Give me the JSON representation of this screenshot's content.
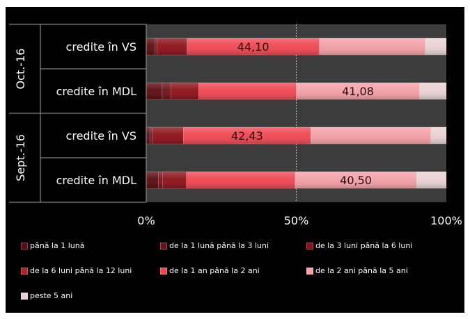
{
  "chart_data": {
    "type": "bar",
    "orientation": "horizontal",
    "stacked": true,
    "percent": true,
    "groups": [
      {
        "label": "Oct.-16",
        "rows": [
          0,
          1
        ]
      },
      {
        "label": "Sept.-16",
        "rows": [
          2,
          3
        ]
      }
    ],
    "categories": [
      "credite în VS",
      "credite în MDL",
      "credite în VS",
      "credite în MDL"
    ],
    "series": [
      {
        "name": "până la 1 lună",
        "color": "#5a0a10",
        "values": [
          2.9,
          5.3,
          1.2,
          4.1
        ]
      },
      {
        "name": "de la 1 lună până la 3 luni",
        "color": "#6e1018",
        "values": [
          0.7,
          3.0,
          0.8,
          1.3
        ]
      },
      {
        "name": "de la 3 luni până la 6 luni",
        "color": "#8c1018",
        "values": [
          10.0,
          9.2,
          10.4,
          8.0
        ]
      },
      {
        "name": "de la 6 luni până la 12 luni",
        "color": "#b02028",
        "values": [
          0,
          0,
          0,
          0
        ]
      },
      {
        "name": "de la 1 an până la 2 ani",
        "color": "#f04650",
        "values": [
          44.1,
          32.5,
          42.43,
          36.2
        ]
      },
      {
        "name": "de la 2 ani până la 5 ani",
        "color": "#f4a0a6",
        "values": [
          35.3,
          41.08,
          40.0,
          40.5
        ]
      },
      {
        "name": "peste 5 ani",
        "color": "#ead2d4",
        "values": [
          7.0,
          8.92,
          5.17,
          9.9
        ]
      }
    ],
    "data_labels": [
      {
        "row": 0,
        "series": 4,
        "text": "44,10"
      },
      {
        "row": 1,
        "series": 5,
        "text": "41,08"
      },
      {
        "row": 2,
        "series": 4,
        "text": "42,43"
      },
      {
        "row": 3,
        "series": 5,
        "text": "40,50"
      }
    ],
    "x_ticks": [
      "0%",
      "50%",
      "100%"
    ],
    "xlim": [
      0,
      100
    ],
    "grid": true,
    "legend_position": "bottom"
  }
}
